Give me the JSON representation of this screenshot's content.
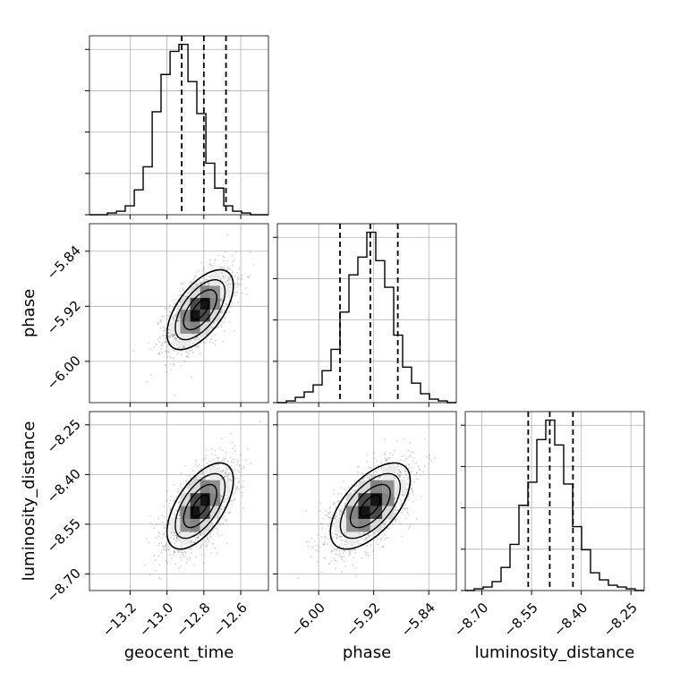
{
  "chart_data": {
    "type": "corner",
    "parameters": [
      "geocent_time",
      "phase",
      "luminosity_distance"
    ],
    "axis_labels": {
      "geocent_time": "geocent_time",
      "phase": "phase",
      "luminosity_distance": "luminosity_distance"
    },
    "ranges": {
      "geocent_time": [
        -13.42,
        -12.45
      ],
      "phase": [
        -6.06,
        -5.8
      ],
      "luminosity_distance": [
        -8.75,
        -8.21
      ]
    },
    "ticks": {
      "geocent_time": {
        "values": [
          -13.2,
          -13.0,
          -12.8,
          -12.6
        ],
        "labels": [
          "−13.2",
          "−13.0",
          "−12.8",
          "−12.6"
        ]
      },
      "phase": {
        "values": [
          -6.0,
          -5.92,
          -5.84
        ],
        "labels": [
          "−6.00",
          "−5.92",
          "−5.84"
        ]
      },
      "luminosity_distance": {
        "values": [
          -8.7,
          -8.55,
          -8.4,
          -8.25
        ],
        "labels": [
          "−8.70",
          "−8.55",
          "−8.40",
          "−8.25"
        ]
      }
    },
    "grid": true,
    "quantiles": {
      "geocent_time": [
        -12.92,
        -12.8,
        -12.68
      ],
      "phase": [
        -5.969,
        -5.925,
        -5.885
      ],
      "luminosity_distance": [
        -8.56,
        -8.495,
        -8.425
      ]
    },
    "histograms": {
      "geocent_time": {
        "edges": [
          -13.42,
          -13.371,
          -13.323,
          -13.274,
          -13.226,
          -13.177,
          -13.129,
          -13.08,
          -13.032,
          -12.983,
          -12.935,
          -12.886,
          -12.838,
          -12.789,
          -12.741,
          -12.692,
          -12.644,
          -12.595,
          -12.547,
          -12.498,
          -12.45
        ],
        "counts": [
          0,
          0,
          1,
          2,
          5,
          14,
          27,
          58,
          79,
          92,
          96,
          75,
          57,
          29,
          15,
          5,
          2,
          1,
          0,
          0
        ]
      },
      "phase": {
        "edges": [
          -6.06,
          -6.047,
          -6.034,
          -6.021,
          -6.008,
          -5.995,
          -5.982,
          -5.969,
          -5.956,
          -5.943,
          -5.93,
          -5.917,
          -5.904,
          -5.891,
          -5.878,
          -5.865,
          -5.852,
          -5.839,
          -5.826,
          -5.813,
          -5.8
        ],
        "counts": [
          0,
          1,
          3,
          6,
          10,
          18,
          30,
          51,
          72,
          82,
          96,
          80,
          65,
          38,
          20,
          11,
          5,
          2,
          1,
          0
        ]
      },
      "luminosity_distance": {
        "edges": [
          -8.75,
          -8.723,
          -8.696,
          -8.669,
          -8.642,
          -8.615,
          -8.588,
          -8.561,
          -8.534,
          -8.507,
          -8.48,
          -8.453,
          -8.426,
          -8.399,
          -8.372,
          -8.345,
          -8.318,
          -8.291,
          -8.264,
          -8.237,
          -8.21
        ],
        "counts": [
          0,
          1,
          2,
          5,
          13,
          26,
          48,
          61,
          85,
          96,
          82,
          60,
          36,
          23,
          10,
          6,
          3,
          2,
          1,
          0
        ]
      }
    },
    "pairs": [
      {
        "x": "geocent_time",
        "y": "phase",
        "center": [
          -12.82,
          -5.925
        ],
        "sd": [
          0.09,
          0.029
        ],
        "rho": 0.6
      },
      {
        "x": "geocent_time",
        "y": "luminosity_distance",
        "center": [
          -12.82,
          -8.495
        ],
        "sd": [
          0.09,
          0.065
        ],
        "rho": 0.6
      },
      {
        "x": "phase",
        "y": "luminosity_distance",
        "center": [
          -5.925,
          -8.495
        ],
        "sd": [
          0.029,
          0.065
        ],
        "rho": 0.6
      }
    ],
    "contour_levels": [
      0.5,
      1.0,
      1.5,
      2.0
    ]
  }
}
